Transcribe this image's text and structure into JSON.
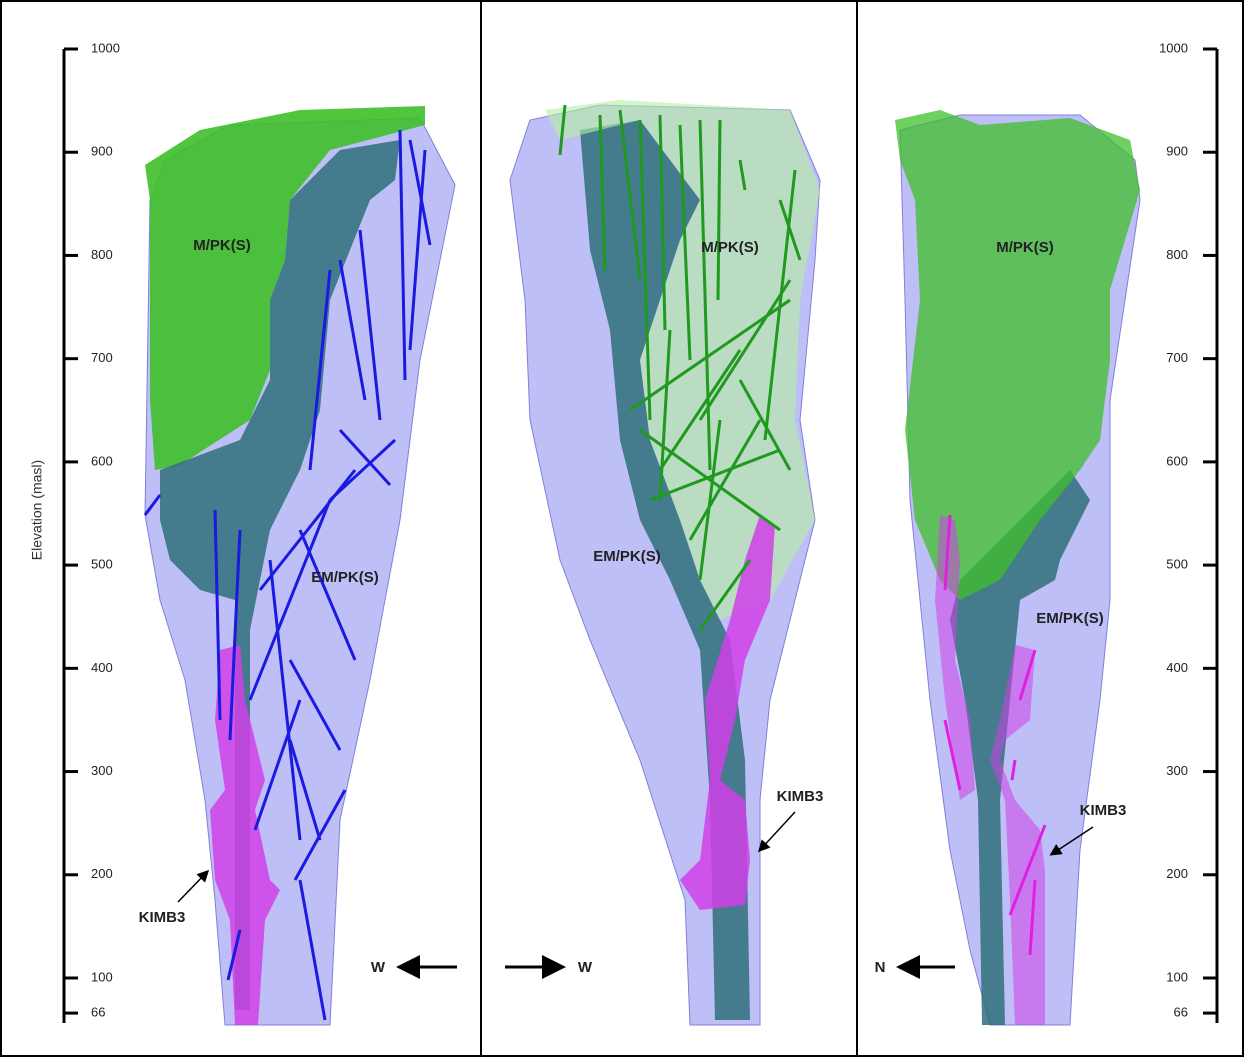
{
  "axes": {
    "left": {
      "title": "Elevation (masl)",
      "ticks": [
        1000,
        900,
        800,
        700,
        600,
        500,
        400,
        300,
        200,
        100,
        66
      ]
    },
    "right": {
      "ticks": [
        1000,
        900,
        800,
        700,
        600,
        500,
        400,
        300,
        200,
        100,
        66
      ]
    }
  },
  "panels": [
    {
      "labels": {
        "upper": "M/PK(S)",
        "lower": "EM/PK(S)",
        "dyke": "KIMB3"
      },
      "direction": "W"
    },
    {
      "labels": {
        "upper": "M/PK(S)",
        "lower": "EM/PK(S)",
        "dyke": "KIMB3"
      },
      "direction": "W"
    },
    {
      "labels": {
        "upper": "M/PK(S)",
        "lower": "EM/PK(S)",
        "dyke": "KIMB3"
      },
      "direction": "N"
    }
  ]
}
